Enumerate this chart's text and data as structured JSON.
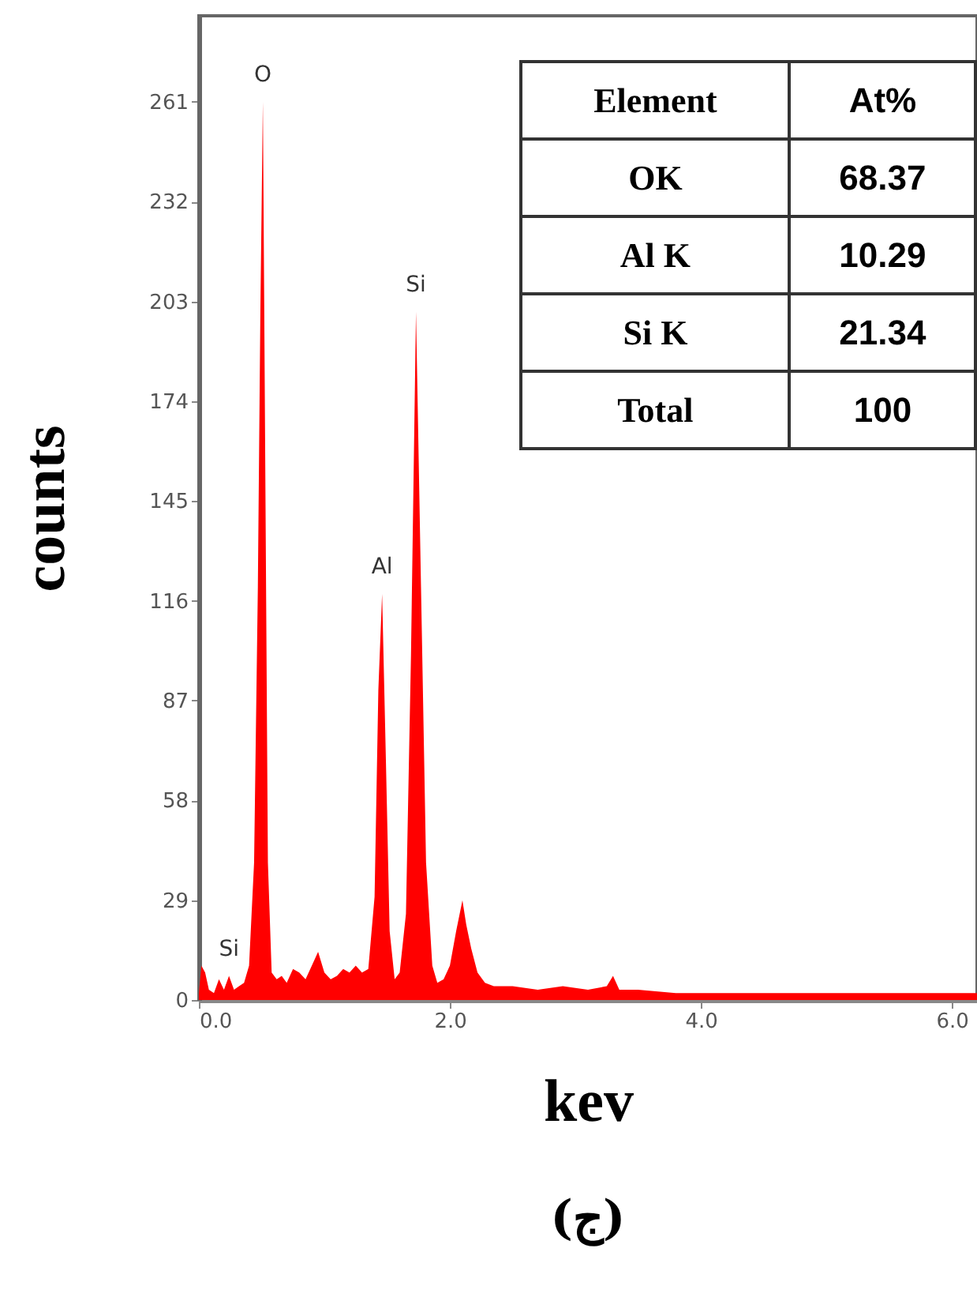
{
  "chart_data": {
    "type": "area",
    "title": "(ج)",
    "xlabel": "kev",
    "ylabel": "counts",
    "x": [
      0,
      0.02,
      0.05,
      0.08,
      0.12,
      0.16,
      0.2,
      0.24,
      0.28,
      0.32,
      0.36,
      0.4,
      0.44,
      0.47,
      0.49,
      0.51,
      0.53,
      0.55,
      0.58,
      0.62,
      0.66,
      0.7,
      0.75,
      0.8,
      0.85,
      0.9,
      0.95,
      1.0,
      1.05,
      1.1,
      1.15,
      1.2,
      1.25,
      1.3,
      1.35,
      1.4,
      1.43,
      1.46,
      1.49,
      1.52,
      1.56,
      1.6,
      1.65,
      1.69,
      1.73,
      1.77,
      1.81,
      1.86,
      1.9,
      1.95,
      2.0,
      2.05,
      2.1,
      2.13,
      2.17,
      2.22,
      2.28,
      2.35,
      2.5,
      2.7,
      2.9,
      3.1,
      3.25,
      3.3,
      3.35,
      3.5,
      3.8,
      4.2,
      4.6,
      5.0,
      5.4,
      5.8,
      6.2
    ],
    "values": [
      2,
      10,
      8,
      3,
      2,
      6,
      3,
      7,
      3,
      4,
      5,
      10,
      40,
      120,
      200,
      261,
      150,
      40,
      8,
      6,
      7,
      5,
      9,
      8,
      6,
      10,
      14,
      8,
      6,
      7,
      9,
      8,
      10,
      8,
      9,
      30,
      90,
      118,
      70,
      20,
      6,
      8,
      25,
      100,
      200,
      120,
      40,
      10,
      5,
      6,
      10,
      20,
      29,
      22,
      15,
      8,
      5,
      4,
      4,
      3,
      4,
      3,
      4,
      7,
      3,
      3,
      2,
      2,
      2,
      2,
      2,
      2,
      2
    ],
    "color": "#ff0000",
    "xlim": [
      0,
      6.2
    ],
    "xticks": [
      {
        "value": 0,
        "label": "0.0"
      },
      {
        "value": 2,
        "label": "2.0"
      },
      {
        "value": 4,
        "label": "4.0"
      },
      {
        "value": 6,
        "label": "6.0"
      }
    ],
    "ylim": [
      0,
      286
    ],
    "yticks": [
      0,
      29,
      58,
      87,
      116,
      145,
      174,
      203,
      232,
      261
    ],
    "annotations": [
      {
        "text": "O",
        "x": 0.51,
        "y": 261
      },
      {
        "text": "Si",
        "x": 1.73,
        "y": 200
      },
      {
        "text": "Al",
        "x": 1.46,
        "y": 118
      },
      {
        "text": "Si",
        "x": 0.24,
        "y": 7
      },
      "Element",
      "At%",
      "OK",
      "68.37",
      "Al K",
      "10.29",
      "Si K",
      "21.34",
      "Total",
      "100"
    ]
  }
}
